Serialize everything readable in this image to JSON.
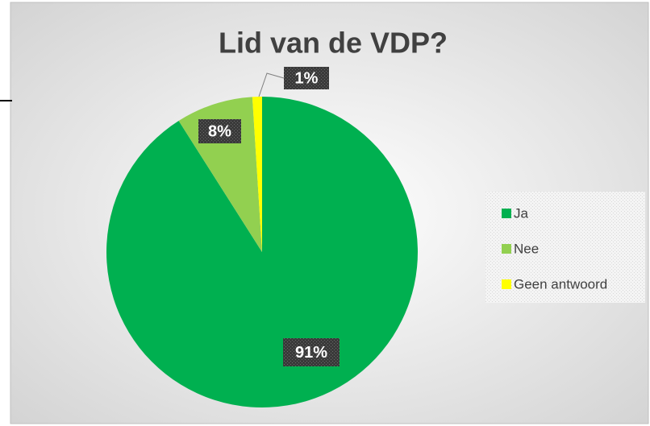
{
  "chart_data": {
    "type": "pie",
    "title": "Lid van de VDP?",
    "categories": [
      "Ja",
      "Nee",
      "Geen antwoord"
    ],
    "values": [
      91,
      8,
      1
    ],
    "value_labels": [
      "91%",
      "8%",
      "1%"
    ],
    "colors": [
      "#00b050",
      "#92d050",
      "#ffff00"
    ],
    "legend": "right"
  }
}
